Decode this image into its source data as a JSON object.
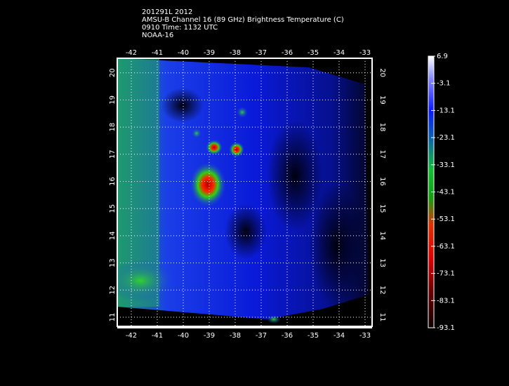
{
  "header": {
    "lines": [
      "201291L 2012",
      "AMSU-B Channel 16 (89 GHz) Brightness Temperature (C)",
      "0910 Time: 1132 UTC",
      "NOAA-16"
    ]
  },
  "map": {
    "lon_labels": [
      "-42",
      "-41",
      "-40",
      "-39",
      "-38",
      "-37",
      "-36",
      "-35",
      "-34",
      "-33"
    ],
    "lat_labels": [
      "11",
      "12",
      "13",
      "14",
      "15",
      "16",
      "17",
      "18",
      "19",
      "20"
    ]
  },
  "colorbar": {
    "labels": [
      "6.9",
      "-3.1",
      "-13.1",
      "-23.1",
      "-33.1",
      "-43.1",
      "-53.1",
      "-63.1",
      "-73.1",
      "-83.1",
      "-93.1"
    ]
  }
}
